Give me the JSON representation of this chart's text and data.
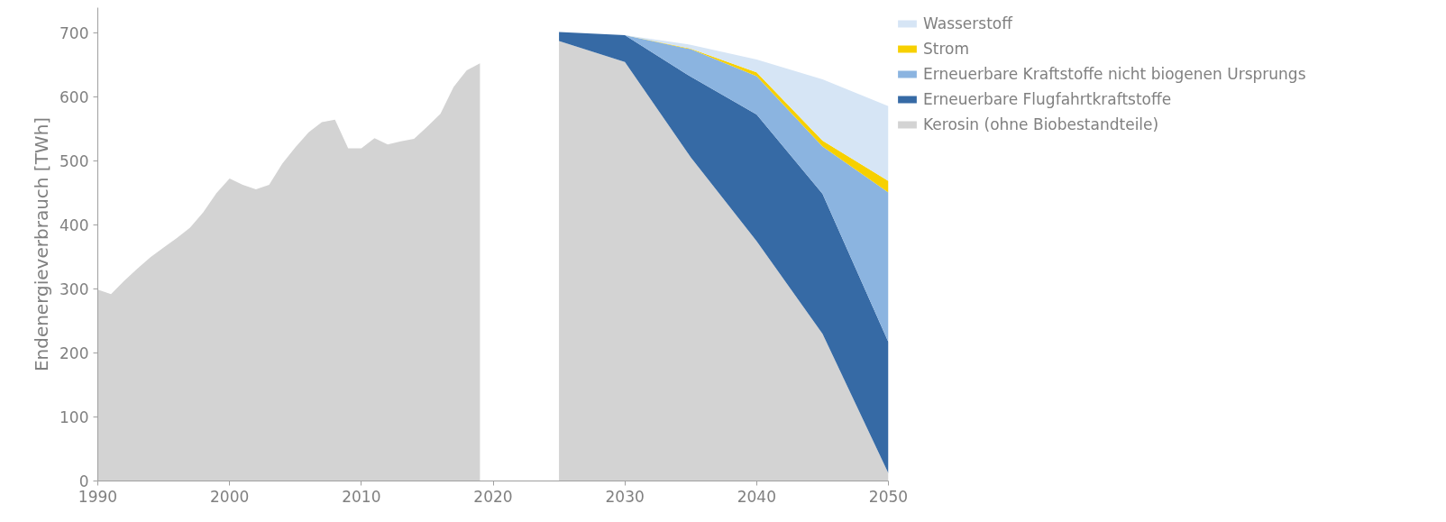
{
  "chart_data": {
    "type": "area",
    "stacked": true,
    "ylabel": "Endenergieverbrauch [TWh]",
    "xlim": [
      1990,
      2050
    ],
    "ylim": [
      0,
      740
    ],
    "xticks": [
      1990,
      2000,
      2010,
      2020,
      2030,
      2040,
      2050
    ],
    "yticks": [
      0,
      100,
      200,
      300,
      400,
      500,
      600,
      700
    ],
    "grid": false,
    "legend": "right",
    "x": [
      1990,
      1991,
      1992,
      1993,
      1994,
      1995,
      1996,
      1997,
      1998,
      1999,
      2000,
      2001,
      2002,
      2003,
      2004,
      2005,
      2006,
      2007,
      2008,
      2009,
      2010,
      2011,
      2012,
      2013,
      2014,
      2015,
      2016,
      2017,
      2018,
      2019,
      2022,
      2025,
      2030,
      2035,
      2040,
      2045,
      2050
    ],
    "series": [
      {
        "name": "Kerosin (ohne Biobestandteile)",
        "color": "#d3d3d3",
        "values": [
          299,
          292,
          313,
          332,
          350,
          365,
          380,
          396,
          420,
          450,
          473,
          463,
          456,
          463,
          496,
          522,
          545,
          561,
          565,
          520,
          520,
          536,
          526,
          531,
          535,
          554,
          574,
          616,
          642,
          653,
          null,
          688,
          655,
          506,
          375,
          230,
          12
        ]
      },
      {
        "name": "Erneuerbare Flugfahrtkraftstoffe",
        "color": "#366aa5",
        "values": [
          null,
          null,
          null,
          null,
          null,
          null,
          null,
          null,
          null,
          null,
          null,
          null,
          null,
          null,
          null,
          null,
          null,
          null,
          null,
          null,
          null,
          null,
          null,
          null,
          null,
          null,
          null,
          null,
          null,
          null,
          null,
          14,
          42,
          126,
          198,
          219,
          205
        ]
      },
      {
        "name": "Erneuerbare Kraftstoffe nicht biogenen Ursprungs",
        "color": "#8bb4e0",
        "values": [
          null,
          null,
          null,
          null,
          null,
          null,
          null,
          null,
          null,
          null,
          null,
          null,
          null,
          null,
          null,
          null,
          null,
          null,
          null,
          null,
          null,
          null,
          null,
          null,
          null,
          null,
          null,
          null,
          null,
          null,
          null,
          0,
          0,
          43,
          60,
          74,
          234
        ]
      },
      {
        "name": "Strom",
        "color": "#f7d000",
        "values": [
          null,
          null,
          null,
          null,
          null,
          null,
          null,
          null,
          null,
          null,
          null,
          null,
          null,
          null,
          null,
          null,
          null,
          null,
          null,
          null,
          null,
          null,
          null,
          null,
          null,
          null,
          null,
          null,
          null,
          null,
          null,
          0,
          0,
          1,
          6,
          9,
          18
        ]
      },
      {
        "name": "Wasserstoff",
        "color": "#d6e5f5",
        "values": [
          null,
          null,
          null,
          null,
          null,
          null,
          null,
          null,
          null,
          null,
          null,
          null,
          null,
          null,
          null,
          null,
          null,
          null,
          null,
          null,
          null,
          null,
          null,
          null,
          null,
          null,
          null,
          null,
          null,
          null,
          null,
          0,
          0,
          6,
          20,
          96,
          117
        ]
      }
    ]
  }
}
